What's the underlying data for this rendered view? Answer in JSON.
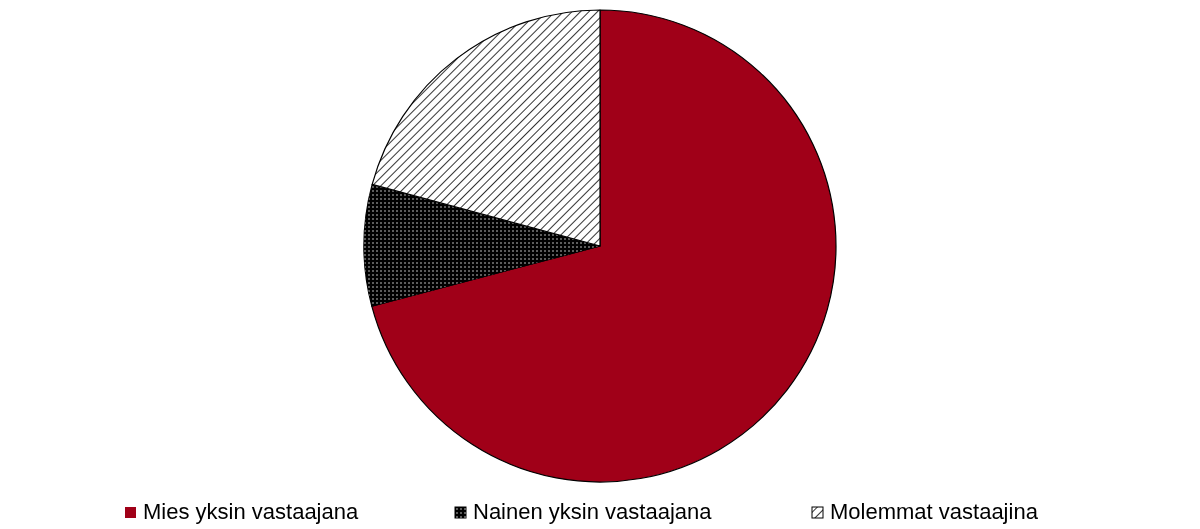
{
  "chart_data": {
    "type": "pie",
    "categories": [
      "Mies yksin vastaajana",
      "Nainen yksin vastaajana",
      "Molemmat vastaajina"
    ],
    "values": [
      70.9,
      8.3,
      20.8
    ],
    "colors": [
      "#a00018",
      "#000000",
      "#ffffff"
    ],
    "legend": "bottom"
  }
}
